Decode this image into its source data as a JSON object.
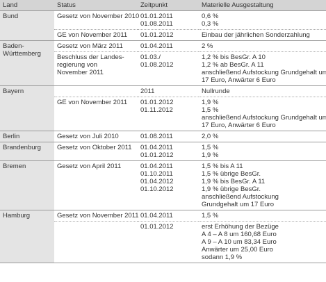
{
  "table": {
    "header": [
      "Land",
      "Status",
      "Zeitpunkt",
      "Materielle Ausgestaltung"
    ],
    "groups": [
      {
        "land": [
          "Bund"
        ],
        "rows": [
          {
            "status": [
              "Gesetz von November 2010"
            ],
            "zeitpunkt": [
              "01.01.2011",
              "01.08.2011"
            ],
            "ausgestaltung": [
              "0,6 %",
              "0,3 %"
            ]
          },
          {
            "status": [
              "GE von November 2011"
            ],
            "zeitpunkt": [
              "01.01.2012"
            ],
            "ausgestaltung": [
              "Einbau der jährlichen Sonderzahlung"
            ]
          }
        ]
      },
      {
        "land": [
          "Baden-",
          "Württemberg"
        ],
        "rows": [
          {
            "status": [
              "Gesetz von März 2011"
            ],
            "zeitpunkt": [
              "01.04.2011"
            ],
            "ausgestaltung": [
              "2 %"
            ]
          },
          {
            "status": [
              "Beschluss der Landes-",
              "regierung von",
              "November 2011"
            ],
            "zeitpunkt": [
              "01.03./",
              "01.08.2012"
            ],
            "ausgestaltung": [
              "1,2 % bis BesGr. A 10",
              "1,2 % ab BesGr. A 11",
              "anschließend Aufstockung Grundgehalt um",
              "17 Euro, Anwärter 6 Euro"
            ]
          }
        ]
      },
      {
        "land": [
          "Bayern"
        ],
        "rows": [
          {
            "zeitpunkt": [
              "2011"
            ],
            "ausgestaltung": [
              "Nullrunde"
            ]
          },
          {
            "status": [
              "GE von November 2011"
            ],
            "zeitpunkt": [
              "01.01.2012",
              "01.11.2012"
            ],
            "ausgestaltung": [
              "1,9 %",
              "1,5 %",
              "anschließend Aufstockung Grundgehalt um",
              "17 Euro, Anwärter 6 Euro"
            ]
          }
        ]
      },
      {
        "land": [
          "Berlin"
        ],
        "rows": [
          {
            "status": [
              "Gesetz von Juli 2010"
            ],
            "zeitpunkt": [
              "01.08.2011"
            ],
            "ausgestaltung": [
              "2,0 %"
            ]
          }
        ]
      },
      {
        "land": [
          "Brandenburg"
        ],
        "rows": [
          {
            "status": [
              "Gesetz von Oktober 2011"
            ],
            "zeitpunkt": [
              "01.04.2011",
              "01.01.2012"
            ],
            "ausgestaltung": [
              "1,5 %",
              "1,9 %"
            ]
          }
        ]
      },
      {
        "land": [
          "Bremen"
        ],
        "rows": [
          {
            "status": [
              "Gesetz von April 2011"
            ],
            "zeitpunkt": [
              "01.04.2011",
              "01.10.2011",
              "01.04.2012",
              "01.10.2012"
            ],
            "ausgestaltung": [
              "1,5 % bis A 11",
              "1,5 % übrige BesGr.",
              "1,9 % bis BesGr. A 11",
              "1,9 % übrige BesGr.",
              "anschließend Aufstockung",
              "Grundgehalt um 17 Euro"
            ]
          }
        ]
      },
      {
        "land": [
          "Hamburg"
        ],
        "rows": [
          {
            "status": [
              "Gesetz von November 2011"
            ],
            "zeitpunkt": [
              "01.04.2011"
            ],
            "ausgestaltung": [
              "1,5 %"
            ]
          },
          {
            "zeitpunkt": [
              "01.01.2012"
            ],
            "ausgestaltung": [
              "erst Erhöhung der Bezüge",
              "A 4 – A 8 um 160,68 Euro",
              "A 9 – A 10 um 83,34 Euro",
              "Anwärter um 25,00 Euro",
              "sodann 1,9 %"
            ]
          }
        ]
      }
    ]
  }
}
